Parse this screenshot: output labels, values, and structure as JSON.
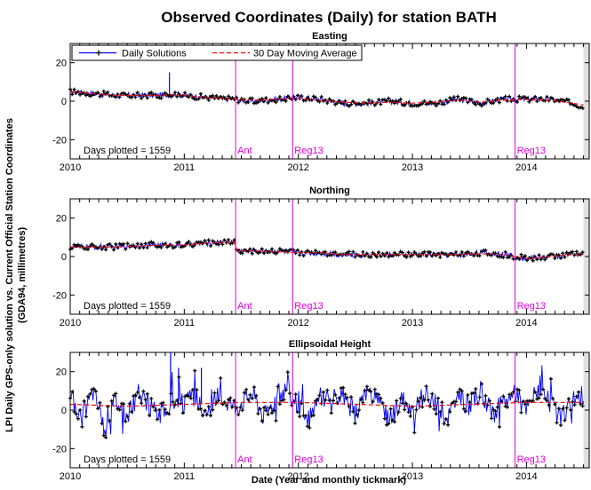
{
  "figure": {
    "title": "Observed Coordinates (Daily) for station BATH",
    "ylabel_line1": "LPI Daily GPS-only solution vs. Current Official Station Coordinates",
    "ylabel_line2": "(GDA94, millimetres)",
    "xlabel": "Date (Year and monthly tickmark)"
  },
  "legend": {
    "daily": "Daily Solutions",
    "moving_avg": "30 Day Moving Average"
  },
  "colors": {
    "daily": "#0000ff",
    "moving_avg": "#ff0000",
    "event": "#e000e0",
    "marker": "#000000",
    "gap": "#e0e0e0"
  },
  "chart_data": [
    {
      "type": "line",
      "title": "Easting",
      "xlim": [
        2010.0,
        2014.55
      ],
      "ylim": [
        -30,
        30
      ],
      "yticks": [
        -20,
        0,
        20
      ],
      "xticks": [
        2010,
        2011,
        2012,
        2013,
        2014
      ],
      "days_plotted_text": "Days plotted = 1559",
      "series": [
        {
          "name": "Daily Solutions",
          "x": [
            2010.0,
            2010.2,
            2010.4,
            2010.6,
            2010.8,
            2010.9,
            2011.0,
            2011.2,
            2011.45,
            2011.6,
            2011.8,
            2012.0,
            2012.2,
            2012.4,
            2012.6,
            2012.8,
            2013.0,
            2013.2,
            2013.4,
            2013.6,
            2013.8,
            2014.0,
            2014.2,
            2014.4,
            2014.5
          ],
          "y": [
            5,
            4,
            3,
            3,
            3,
            4,
            3,
            2,
            1,
            0,
            1,
            2,
            1,
            -1,
            -1,
            0,
            -1,
            -1,
            1,
            -1,
            1,
            1,
            1,
            -1,
            -3
          ]
        },
        {
          "name": "30 Day Moving Average",
          "x": [
            2010.0,
            2010.2,
            2010.4,
            2010.6,
            2010.8,
            2010.9,
            2011.0,
            2011.2,
            2011.45,
            2011.6,
            2011.8,
            2012.0,
            2012.2,
            2012.4,
            2012.6,
            2012.8,
            2013.0,
            2013.2,
            2013.4,
            2013.6,
            2013.8,
            2014.0,
            2014.2,
            2014.4,
            2014.5
          ],
          "y": [
            5,
            4,
            3,
            3,
            3,
            3.5,
            3,
            2,
            1,
            0.5,
            1,
            1.5,
            0.5,
            -0.5,
            -1,
            -0.5,
            -1,
            -0.5,
            0.5,
            -0.5,
            0.5,
            1,
            0.5,
            -1,
            -2
          ]
        }
      ],
      "spikes": [
        {
          "x": 2010.87,
          "y_from": 3,
          "y_to": 15
        }
      ],
      "events": [
        {
          "x": 2011.45,
          "label": "Ant"
        },
        {
          "x": 2011.95,
          "label": "Reg13"
        },
        {
          "x": 2013.9,
          "label": "Reg13"
        }
      ],
      "gap_from": 2014.5
    },
    {
      "type": "line",
      "title": "Northing",
      "xlim": [
        2010.0,
        2014.55
      ],
      "ylim": [
        -30,
        30
      ],
      "yticks": [
        -20,
        0,
        20
      ],
      "xticks": [
        2010,
        2011,
        2012,
        2013,
        2014
      ],
      "days_plotted_text": "Days plotted = 1559",
      "series": [
        {
          "name": "Daily Solutions",
          "x": [
            2010.0,
            2010.2,
            2010.4,
            2010.6,
            2010.8,
            2011.0,
            2011.2,
            2011.44,
            2011.46,
            2011.6,
            2011.8,
            2012.0,
            2012.2,
            2012.4,
            2012.6,
            2012.8,
            2013.0,
            2013.2,
            2013.4,
            2013.6,
            2013.8,
            2014.0,
            2014.2,
            2014.4,
            2014.5
          ],
          "y": [
            5,
            5,
            5,
            6,
            6,
            6,
            7,
            8,
            3,
            3,
            3,
            2,
            2,
            1,
            1,
            1,
            1,
            1,
            1,
            2,
            1,
            -1,
            0,
            1,
            1
          ]
        },
        {
          "name": "30 Day Moving Average",
          "x": [
            2010.0,
            2010.2,
            2010.4,
            2010.6,
            2010.8,
            2011.0,
            2011.2,
            2011.44,
            2011.46,
            2011.6,
            2011.8,
            2012.0,
            2012.2,
            2012.4,
            2012.6,
            2012.8,
            2013.0,
            2013.2,
            2013.4,
            2013.6,
            2013.8,
            2014.0,
            2014.2,
            2014.4,
            2014.5
          ],
          "y": [
            5,
            5,
            5,
            5.5,
            6,
            6,
            7,
            7.5,
            3,
            3,
            2.5,
            2,
            2,
            1,
            1,
            1,
            1,
            1,
            1,
            1.5,
            1,
            -1,
            0,
            1,
            1
          ]
        }
      ],
      "spikes": [],
      "events": [
        {
          "x": 2011.45,
          "label": "Ant"
        },
        {
          "x": 2011.95,
          "label": "Reg13"
        },
        {
          "x": 2013.9,
          "label": "Reg13"
        }
      ],
      "gap_from": 2014.5
    },
    {
      "type": "line",
      "title": "Ellipsoidal Height",
      "xlim": [
        2010.0,
        2014.55
      ],
      "ylim": [
        -30,
        30
      ],
      "yticks": [
        -20,
        0,
        20
      ],
      "xticks": [
        2010,
        2011,
        2012,
        2013,
        2014
      ],
      "days_plotted_text": "Days plotted = 1559",
      "series": [
        {
          "name": "Daily Solutions",
          "x": [
            2010.0,
            2010.1,
            2010.2,
            2010.3,
            2010.4,
            2010.5,
            2010.6,
            2010.7,
            2010.8,
            2010.9,
            2011.0,
            2011.1,
            2011.2,
            2011.3,
            2011.45,
            2011.6,
            2011.7,
            2011.8,
            2011.9,
            2012.0,
            2012.1,
            2012.2,
            2012.3,
            2012.4,
            2012.5,
            2012.6,
            2012.7,
            2012.8,
            2012.9,
            2013.0,
            2013.1,
            2013.2,
            2013.3,
            2013.4,
            2013.5,
            2013.6,
            2013.7,
            2013.8,
            2013.9,
            2014.0,
            2014.1,
            2014.2,
            2014.3,
            2014.4,
            2014.5
          ],
          "y": [
            8,
            -4,
            10,
            -6,
            6,
            -3,
            9,
            2,
            -2,
            5,
            3,
            7,
            -4,
            8,
            2,
            9,
            -3,
            6,
            12,
            1,
            -5,
            8,
            3,
            7,
            -2,
            9,
            4,
            -6,
            6,
            -2,
            8,
            3,
            -4,
            7,
            2,
            10,
            -3,
            5,
            8,
            0,
            12,
            4,
            -5,
            6,
            3
          ]
        },
        {
          "name": "30 Day Moving Average",
          "x": [
            2010.0,
            2010.5,
            2011.0,
            2011.5,
            2012.0,
            2012.5,
            2013.0,
            2013.5,
            2014.0,
            2014.5
          ],
          "y": [
            3,
            2,
            3,
            4,
            4,
            3,
            2,
            3,
            4,
            4
          ]
        }
      ],
      "spikes": [
        {
          "x": 2010.88,
          "y_from": 2,
          "y_to": 30
        },
        {
          "x": 2010.95,
          "y_from": 3,
          "y_to": 22
        },
        {
          "x": 2011.15,
          "y_from": 3,
          "y_to": 22
        }
      ],
      "events": [
        {
          "x": 2011.45,
          "label": "Ant"
        },
        {
          "x": 2011.95,
          "label": "Reg13"
        },
        {
          "x": 2013.9,
          "label": "Reg13"
        }
      ],
      "gap_from": 2014.5
    }
  ]
}
